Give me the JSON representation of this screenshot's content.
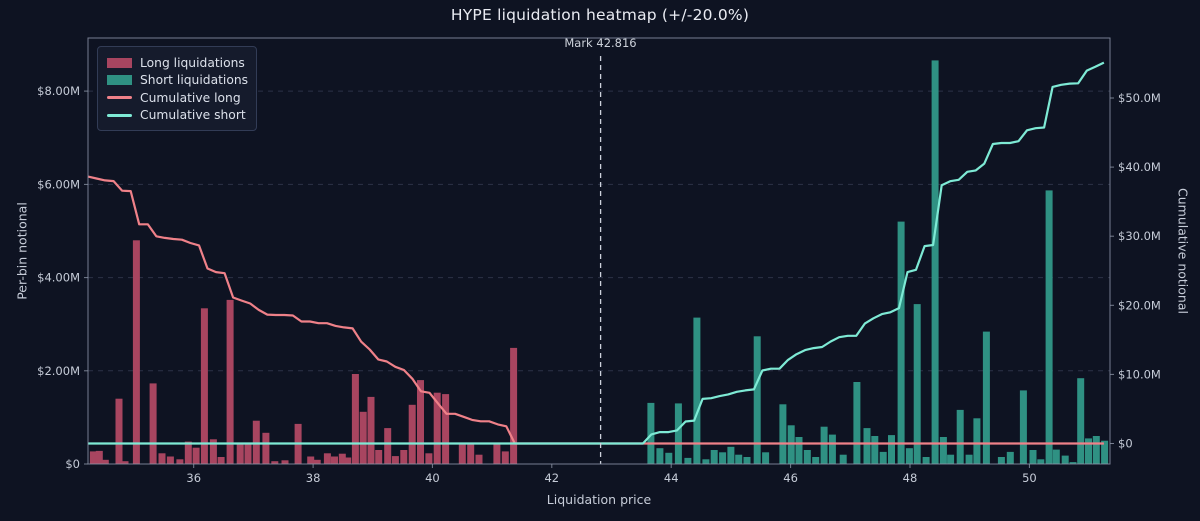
{
  "title": "HYPE liquidation heatmap (+/-20.0%)",
  "mark": {
    "price": 42.816,
    "label": "Mark 42.816",
    "range_pct": "+/-20.0%"
  },
  "axes": {
    "x_label": "Liquidation price",
    "y_left_label": "Per-bin notional",
    "y_right_label": "Cumulative notional",
    "x_ticks": [
      {
        "v": 36,
        "label": "36"
      },
      {
        "v": 38,
        "label": "38"
      },
      {
        "v": 40,
        "label": "40"
      },
      {
        "v": 42,
        "label": "42"
      },
      {
        "v": 44,
        "label": "44"
      },
      {
        "v": 46,
        "label": "46"
      },
      {
        "v": 48,
        "label": "48"
      },
      {
        "v": 50,
        "label": "50"
      }
    ],
    "y_left_ticks": [
      {
        "v": 0,
        "label": "$0"
      },
      {
        "v": 2,
        "label": "$2.00M"
      },
      {
        "v": 4,
        "label": "$4.00M"
      },
      {
        "v": 6,
        "label": "$6.00M"
      },
      {
        "v": 8,
        "label": "$8.00M"
      }
    ],
    "y_right_ticks": [
      {
        "v": 0,
        "label": "$0"
      },
      {
        "v": 10,
        "label": "$10.0M"
      },
      {
        "v": 20,
        "label": "$20.0M"
      },
      {
        "v": 30,
        "label": "$30.0M"
      },
      {
        "v": 40,
        "label": "$40.0M"
      },
      {
        "v": 50,
        "label": "$50.0M"
      }
    ],
    "xlim": [
      34.23,
      51.35
    ],
    "ylim_left_musd": [
      0,
      9.14
    ],
    "ylim_right_musd": [
      -2.97,
      58.7
    ],
    "grid": "horizontal-dashed"
  },
  "legend": {
    "items": [
      {
        "label": "Long liquidations",
        "swatch": "patch",
        "color": "#a84560"
      },
      {
        "label": "Short liquidations",
        "swatch": "patch",
        "color": "#2f9183"
      },
      {
        "label": "Cumulative long",
        "swatch": "line",
        "color": "#ef8189"
      },
      {
        "label": "Cumulative short",
        "swatch": "line",
        "color": "#7eead5"
      }
    ],
    "position": "upper-left"
  },
  "chart_data": {
    "type": "bar",
    "title": "HYPE liquidation heatmap (+/-20.0%)",
    "xlabel": "Liquidation price",
    "ylabel": "Per-bin notional",
    "ylabel_right": "Cumulative notional",
    "mark_price": 42.816,
    "bin_width": 0.143,
    "units": "million USD",
    "series": [
      {
        "name": "Long liquidations",
        "type": "bar",
        "axis": "left",
        "color": "#a84560",
        "points": [
          [
            34.32,
            0.27
          ],
          [
            34.42,
            0.28
          ],
          [
            34.52,
            0.09
          ],
          [
            34.75,
            1.4
          ],
          [
            34.85,
            0.06
          ],
          [
            35.04,
            4.8
          ],
          [
            35.32,
            1.73
          ],
          [
            35.47,
            0.23
          ],
          [
            35.61,
            0.16
          ],
          [
            35.77,
            0.1
          ],
          [
            35.91,
            0.48
          ],
          [
            36.04,
            0.35
          ],
          [
            36.18,
            3.34
          ],
          [
            36.33,
            0.53
          ],
          [
            36.46,
            0.15
          ],
          [
            36.61,
            3.52
          ],
          [
            36.78,
            0.45
          ],
          [
            36.91,
            0.42
          ],
          [
            37.05,
            0.93
          ],
          [
            37.21,
            0.67
          ],
          [
            37.36,
            0.06
          ],
          [
            37.53,
            0.08
          ],
          [
            37.75,
            0.86
          ],
          [
            37.96,
            0.16
          ],
          [
            38.07,
            0.09
          ],
          [
            38.24,
            0.23
          ],
          [
            38.36,
            0.16
          ],
          [
            38.49,
            0.22
          ],
          [
            38.58,
            0.14
          ],
          [
            38.71,
            1.93
          ],
          [
            38.84,
            1.12
          ],
          [
            38.97,
            1.44
          ],
          [
            39.1,
            0.3
          ],
          [
            39.25,
            0.77
          ],
          [
            39.38,
            0.17
          ],
          [
            39.52,
            0.3
          ],
          [
            39.66,
            1.27
          ],
          [
            39.8,
            1.8
          ],
          [
            39.94,
            0.23
          ],
          [
            40.08,
            1.53
          ],
          [
            40.22,
            1.5
          ],
          [
            40.5,
            0.44
          ],
          [
            40.64,
            0.45
          ],
          [
            40.78,
            0.2
          ],
          [
            41.08,
            0.45
          ],
          [
            41.22,
            0.27
          ],
          [
            41.36,
            2.49
          ]
        ]
      },
      {
        "name": "Short liquidations",
        "type": "bar",
        "axis": "left",
        "color": "#2f9183",
        "points": [
          [
            43.66,
            1.31
          ],
          [
            43.81,
            0.34
          ],
          [
            43.96,
            0.24
          ],
          [
            44.12,
            1.3
          ],
          [
            44.28,
            0.13
          ],
          [
            44.43,
            3.14
          ],
          [
            44.58,
            0.1
          ],
          [
            44.72,
            0.3
          ],
          [
            44.86,
            0.25
          ],
          [
            45.0,
            0.37
          ],
          [
            45.13,
            0.2
          ],
          [
            45.27,
            0.15
          ],
          [
            45.44,
            2.74
          ],
          [
            45.58,
            0.25
          ],
          [
            45.87,
            1.28
          ],
          [
            46.01,
            0.83
          ],
          [
            46.14,
            0.58
          ],
          [
            46.28,
            0.3
          ],
          [
            46.42,
            0.15
          ],
          [
            46.56,
            0.8
          ],
          [
            46.7,
            0.63
          ],
          [
            46.88,
            0.2
          ],
          [
            47.11,
            1.76
          ],
          [
            47.28,
            0.77
          ],
          [
            47.41,
            0.6
          ],
          [
            47.55,
            0.26
          ],
          [
            47.69,
            0.62
          ],
          [
            47.85,
            5.2
          ],
          [
            47.99,
            0.34
          ],
          [
            48.12,
            3.43
          ],
          [
            48.27,
            0.15
          ],
          [
            48.42,
            8.66
          ],
          [
            48.56,
            0.58
          ],
          [
            48.68,
            0.2
          ],
          [
            48.84,
            1.16
          ],
          [
            48.99,
            0.2
          ],
          [
            49.12,
            0.98
          ],
          [
            49.28,
            2.84
          ],
          [
            49.53,
            0.15
          ],
          [
            49.68,
            0.26
          ],
          [
            49.9,
            1.58
          ],
          [
            50.06,
            0.3
          ],
          [
            50.19,
            0.1
          ],
          [
            50.33,
            5.87
          ],
          [
            50.45,
            0.31
          ],
          [
            50.6,
            0.18
          ],
          [
            50.73,
            0.04
          ],
          [
            50.86,
            1.84
          ],
          [
            50.99,
            0.55
          ],
          [
            51.12,
            0.6
          ],
          [
            51.26,
            0.5
          ]
        ]
      },
      {
        "name": "Cumulative long",
        "type": "line",
        "axis": "right",
        "color": "#ef8189",
        "derivation": "running sum of long bars from mark price downward; ~$38.6M at left edge, 0 at mark"
      },
      {
        "name": "Cumulative short",
        "type": "line",
        "axis": "right",
        "color": "#7eead5",
        "derivation": "running sum of short bars from mark price upward; ~$55.6M at right edge, 0 at mark"
      }
    ]
  },
  "colors": {
    "background": "#0e1322",
    "long_bar": "#a84560",
    "short_bar": "#2f9183",
    "cum_long_line": "#ef8189",
    "cum_short_line": "#7eead5",
    "grid": "#2c3347",
    "spine": "#8a92a4",
    "tick_label": "#c6ccd8",
    "title_text": "#e9ebf2",
    "mark_line": "#ccd1dc",
    "legend_bg": "#151b2c",
    "legend_border": "#323c56",
    "legend_text": "#dbe0ea"
  }
}
